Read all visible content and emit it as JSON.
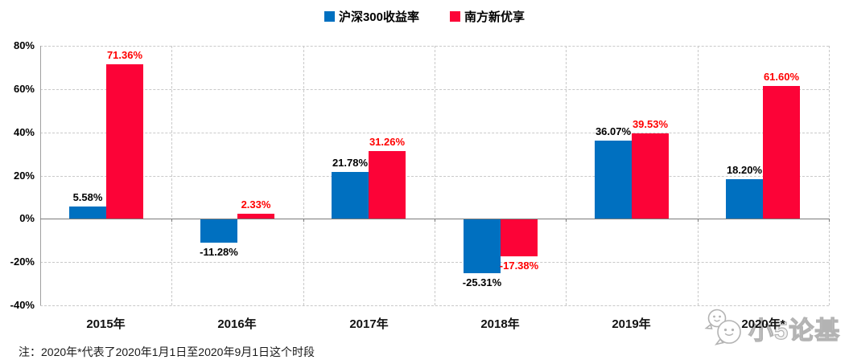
{
  "chart_data": {
    "type": "bar",
    "title": "",
    "xlabel": "",
    "ylabel": "",
    "categories": [
      "2015年",
      "2016年",
      "2017年",
      "2018年",
      "2019年",
      "2020年*"
    ],
    "series": [
      {
        "name": "沪深300收益率",
        "color": "#0070C0",
        "label_color": "#000000",
        "values": [
          5.58,
          -11.28,
          21.78,
          -25.31,
          36.07,
          18.2
        ]
      },
      {
        "name": "南方新优享",
        "color": "#FC0337",
        "label_color": "#FF0000",
        "values": [
          71.36,
          2.33,
          31.26,
          -17.38,
          39.53,
          61.6
        ]
      }
    ],
    "ylim": [
      -40,
      80
    ],
    "ytick_step": 20,
    "ytick_labels": [
      "80%",
      "60%",
      "40%",
      "20%",
      "0%",
      "-20%",
      "-40%"
    ],
    "value_label_format": "0.00%",
    "grid": "dashed horizontal gridlines every 20% and dashed vertical lines at category boundaries; solid zero axis",
    "legend_position": "top-center"
  },
  "footnote": "注：2020年*代表了2020年1月1日至2020年9月1日这个时段",
  "watermark": {
    "text": "小5论基",
    "icon": "chat-bubbles-icon"
  },
  "colors": {
    "series1_bar": "#0070C0",
    "series2_bar": "#FC0337",
    "series2_label": "#FF0000",
    "gridline": "#c9c9c9",
    "zero_line": "#7a7a7a",
    "axis_line": "#9f9f9f",
    "watermark": "#b3b3b3",
    "background": "#ffffff"
  }
}
